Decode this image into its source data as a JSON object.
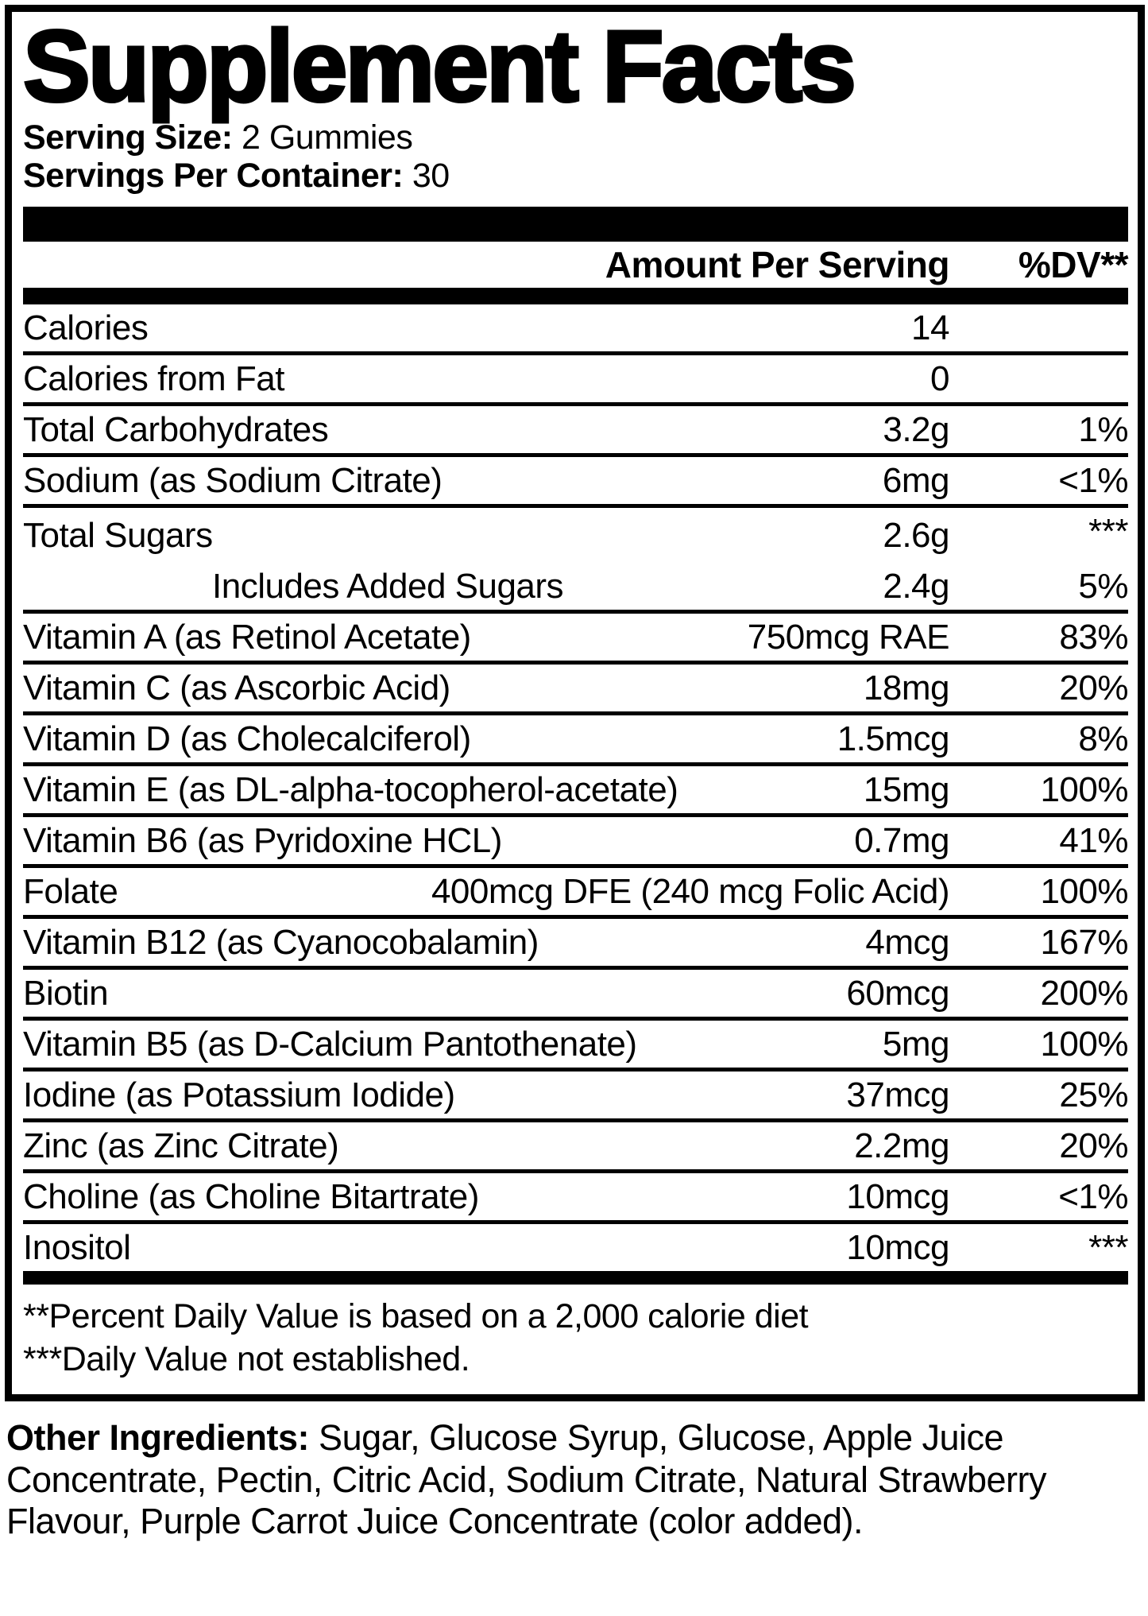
{
  "colors": {
    "ink": "#000000",
    "paper": "#ffffff"
  },
  "label": {
    "title": "Supplement Facts",
    "serving_size_label": "Serving Size:",
    "serving_size_value": "2 Gummies",
    "servings_label": "Servings Per Container:",
    "servings_value": "30",
    "header": {
      "amount": "Amount Per Serving",
      "dv": "%DV**"
    },
    "rows": [
      {
        "name": "Calories",
        "amount": "14",
        "dv": ""
      },
      {
        "name": "Calories from Fat",
        "amount": "0",
        "dv": ""
      },
      {
        "name": "Total Carbohydrates",
        "amount": "3.2g",
        "dv": "1%"
      },
      {
        "name": "Sodium (as Sodium Citrate)",
        "amount": "6mg",
        "dv": "<1%"
      },
      {
        "name": "Total Sugars",
        "amount": "2.6g",
        "dv": "***",
        "dv_raised": true,
        "divider_after": false
      },
      {
        "name": "Includes Added Sugars",
        "amount": "2.4g",
        "dv": "5%",
        "indent": true
      },
      {
        "name": "Vitamin A (as Retinol Acetate)",
        "amount": "750mcg RAE",
        "dv": "83%"
      },
      {
        "name": "Vitamin C (as Ascorbic Acid)",
        "amount": "18mg",
        "dv": "20%"
      },
      {
        "name": "Vitamin D (as Cholecalciferol)",
        "amount": "1.5mcg",
        "dv": "8%"
      },
      {
        "name": "Vitamin E (as DL-alpha-tocopherol-acetate)",
        "amount": "15mg",
        "dv": "100%"
      },
      {
        "name": "Vitamin B6 (as Pyridoxine HCL)",
        "amount": "0.7mg",
        "dv": "41%"
      },
      {
        "name": "Folate",
        "amount": "400mcg DFE (240 mcg Folic Acid)",
        "dv": "100%"
      },
      {
        "name": "Vitamin B12 (as Cyanocobalamin)",
        "amount": "4mcg",
        "dv": "167%"
      },
      {
        "name": "Biotin",
        "amount": "60mcg",
        "dv": "200%"
      },
      {
        "name": "Vitamin B5 (as D-Calcium Pantothenate)",
        "amount": "5mg",
        "dv": "100%"
      },
      {
        "name": "Iodine (as Potassium Iodide)",
        "amount": "37mcg",
        "dv": "25%"
      },
      {
        "name": "Zinc (as Zinc Citrate)",
        "amount": "2.2mg",
        "dv": "20%"
      },
      {
        "name": "Choline (as Choline Bitartrate)",
        "amount": "10mcg",
        "dv": "<1%"
      },
      {
        "name": "Inositol",
        "amount": "10mcg",
        "dv": "***",
        "dv_raised": true
      }
    ],
    "footnotes": [
      "**Percent Daily Value is based on a 2,000 calorie diet",
      "***Daily Value not established."
    ]
  },
  "other_ingredients": {
    "label": "Other Ingredients:",
    "text": " Sugar, Glucose Syrup, Glucose, Apple Juice Concentrate, Pectin, Citric Acid, Sodium Citrate, Natural Strawberry Flavour, Purple Carrot Juice Concentrate (color added)."
  }
}
